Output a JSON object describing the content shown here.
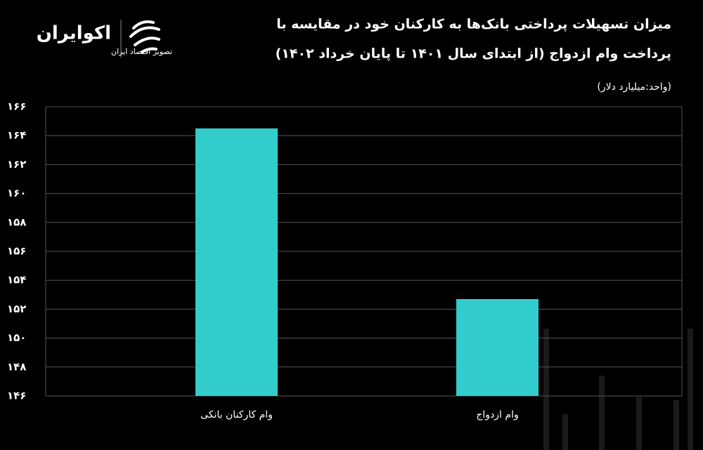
{
  "logo": {
    "name": "اکوایران",
    "tagline": "تصویر اقتصاد ایران"
  },
  "chart_data": {
    "type": "bar",
    "title": [
      "میزان تسهیلات پرداختی بانک‌ها به کارکنان خود در مقایسه با",
      "پرداخت وام ازدواج (از ابتدای سال ۱۴۰۱ تا پایان خرداد ۱۴۰۲)"
    ],
    "subtitle": "(واحد:میلیارد دلار)",
    "categories": [
      "وام کارکنان بانکی",
      "وام ازدواج"
    ],
    "values": [
      164.5,
      152.7
    ],
    "color": "#33cccc",
    "ylim": [
      146,
      166
    ],
    "yticks": [
      {
        "value": 146,
        "label": "۱۴۶"
      },
      {
        "value": 148,
        "label": "۱۴۸"
      },
      {
        "value": 150,
        "label": "۱۵۰"
      },
      {
        "value": 152,
        "label": "۱۵۲"
      },
      {
        "value": 154,
        "label": "۱۵۴"
      },
      {
        "value": 156,
        "label": "۱۵۶"
      },
      {
        "value": 158,
        "label": "۱۵۸"
      },
      {
        "value": 160,
        "label": "۱۶۰"
      },
      {
        "value": 162,
        "label": "۱۶۲"
      },
      {
        "value": 164,
        "label": "۱۶۴"
      },
      {
        "value": 166,
        "label": "۱۶۶"
      }
    ],
    "grid": true
  }
}
